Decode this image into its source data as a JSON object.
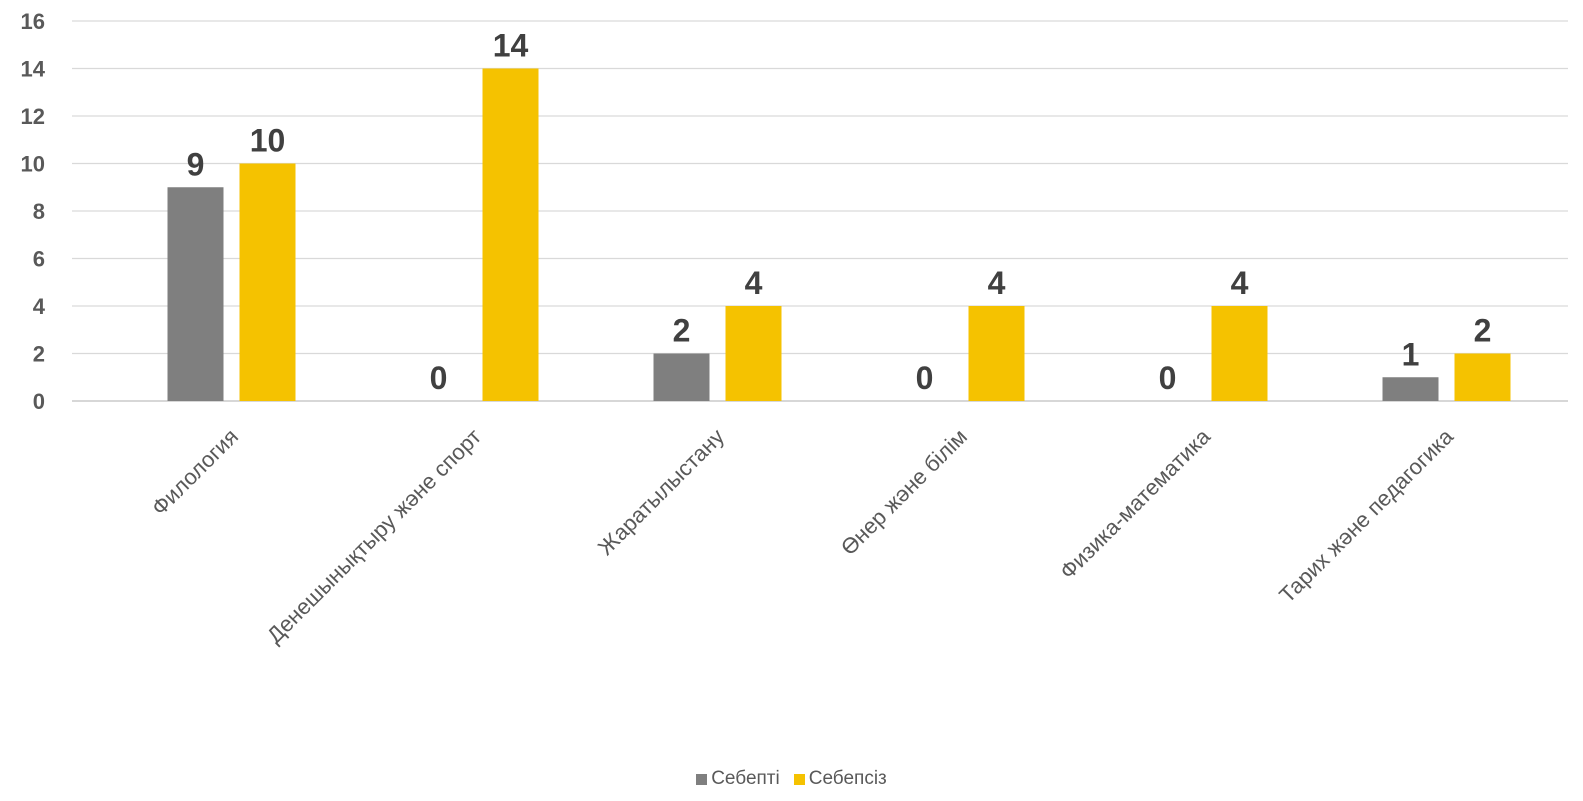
{
  "chart_data": {
    "type": "bar",
    "categories": [
      "Филология",
      "Денешынықтыру және спорт",
      "Жаратылыстану",
      "Өнер және білім",
      "Физика-математика",
      "Тарих және педагогика"
    ],
    "series": [
      {
        "name": "Себепті",
        "values": [
          9,
          0,
          2,
          0,
          0,
          1
        ],
        "color": "#7f7f7f"
      },
      {
        "name": "Себепсіз",
        "values": [
          10,
          14,
          4,
          4,
          4,
          2
        ],
        "color": "#f5c200"
      }
    ],
    "yticks": [
      "0",
      "2",
      "4",
      "6",
      "8",
      "10",
      "12",
      "14",
      "16"
    ],
    "ylim": [
      0,
      16
    ],
    "grid": true,
    "legend_position": "bottom",
    "data_labels": true
  }
}
